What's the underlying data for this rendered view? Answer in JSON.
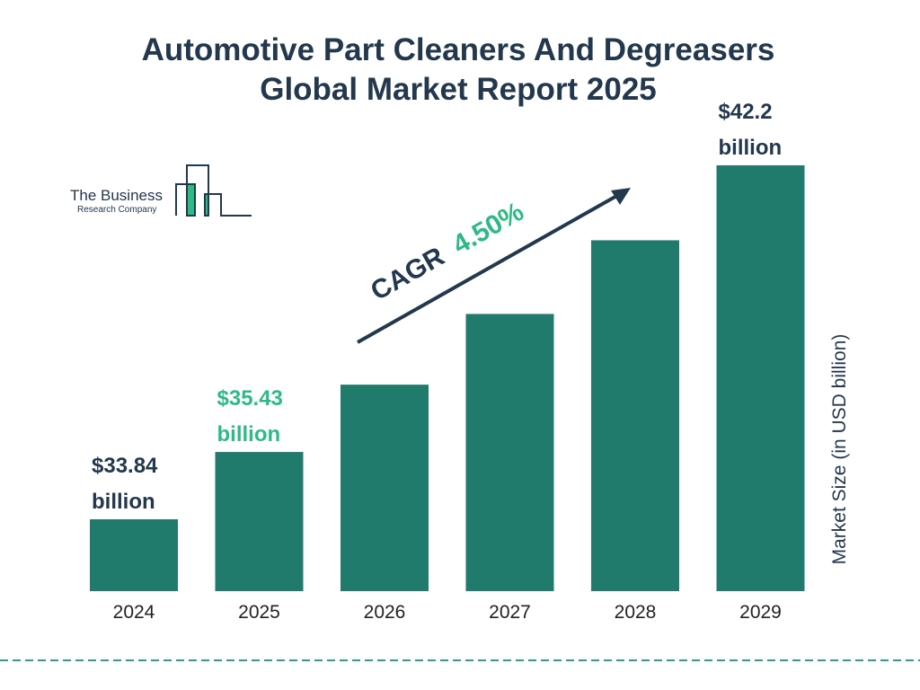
{
  "chart_data": {
    "type": "bar",
    "title": "Automotive Part Cleaners And Degreasers Global Market Report 2025",
    "categories": [
      "2024",
      "2025",
      "2026",
      "2027",
      "2028",
      "2029"
    ],
    "values": [
      33.84,
      35.43,
      37.02,
      38.69,
      40.43,
      42.2
    ],
    "data_labels": [
      {
        "index": 0,
        "line1": "$33.84",
        "line2": "billion",
        "color": "#23384d"
      },
      {
        "index": 1,
        "line1": "$35.43",
        "line2": "billion",
        "color": "#2dba84"
      },
      {
        "index": 5,
        "line1": "$42.2",
        "line2": "billion",
        "color": "#23384d"
      }
    ],
    "ylabel": "Market Size (in USD billion)",
    "xlabel": "",
    "grid": false,
    "annotation": {
      "prefix": "CAGR",
      "value": "4.50%"
    },
    "colors": {
      "bar": "#217b6c",
      "text": "#23384d",
      "accent": "#2dba84",
      "dash": "#2a9d8f"
    }
  },
  "logo": {
    "line1": "The Business",
    "line2": "Research Company"
  }
}
